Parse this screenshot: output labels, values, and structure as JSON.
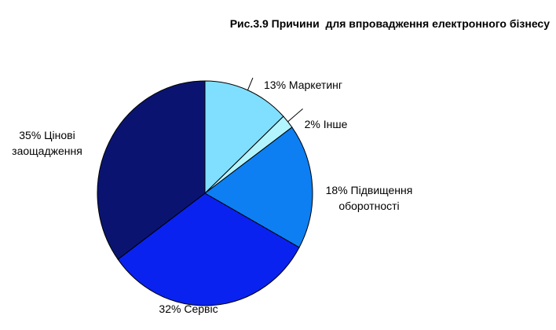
{
  "chart_data": {
    "type": "pie",
    "title": "Рис.3.9 Причини  для впровадження електронного бізнесу",
    "start_angle": 0,
    "direction": "clockwise",
    "slices": [
      {
        "label_lines": [
          "13% Маркетинг"
        ],
        "value": 13,
        "color": "#80DFFF"
      },
      {
        "label_lines": [
          "2% Інше"
        ],
        "value": 2,
        "color": "#B3F5FF"
      },
      {
        "label_lines": [
          "18% Підвищення",
          "оборотності"
        ],
        "value": 18,
        "color": "#0D7FF2"
      },
      {
        "label_lines": [
          "32% Сервіс"
        ],
        "value": 32,
        "color": "#0A22F0"
      },
      {
        "label_lines": [
          "35% Цінові",
          "заощадження"
        ],
        "value": 35,
        "color": "#0A1470"
      }
    ]
  }
}
